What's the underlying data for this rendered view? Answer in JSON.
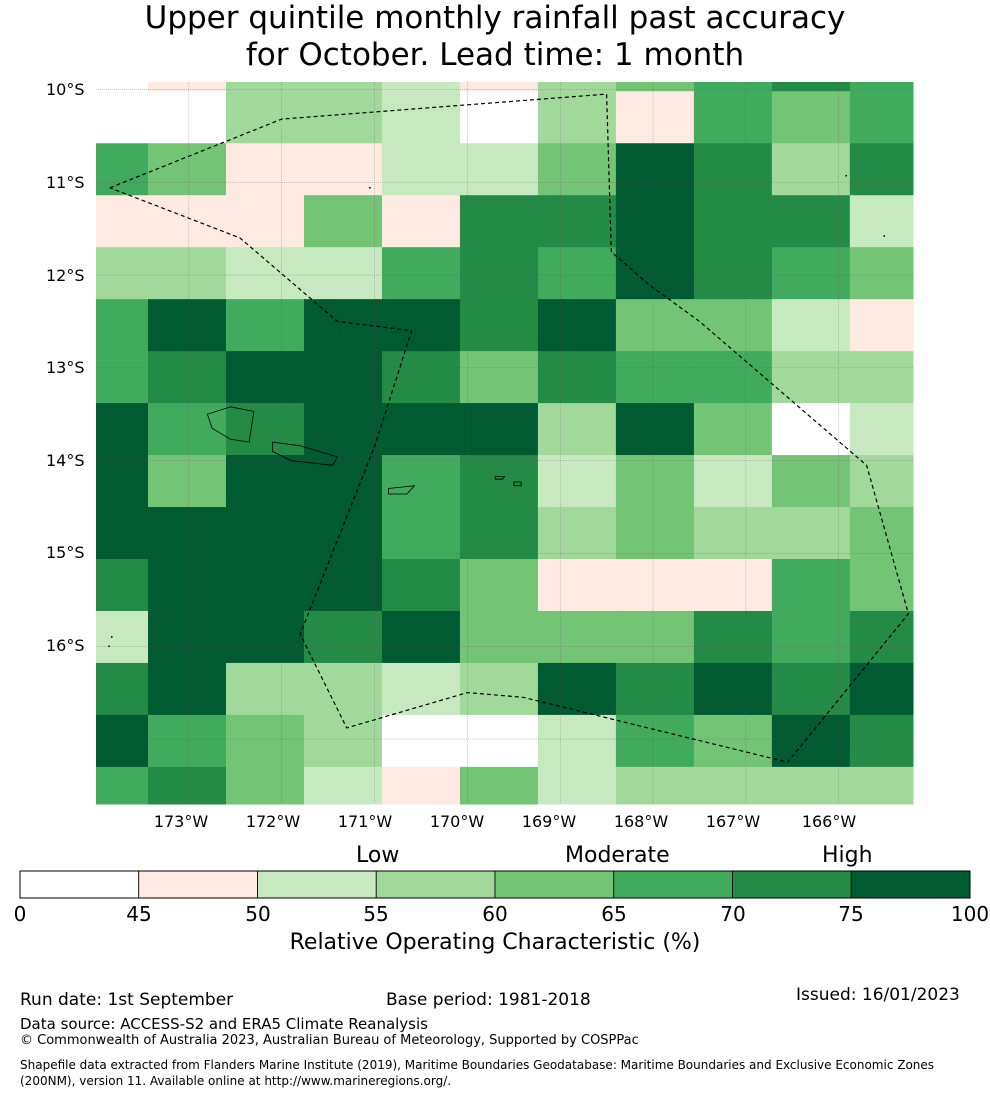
{
  "title": {
    "line1": "Upper quintile monthly rainfall past accuracy",
    "line2": "for October. Lead time: 1 month"
  },
  "map": {
    "y_labels": [
      "10°S",
      "11°S",
      "12°S",
      "13°S",
      "14°S",
      "15°S",
      "16°S"
    ],
    "x_labels": [
      "173°W",
      "172°W",
      "171°W",
      "170°W",
      "169°W",
      "168°W",
      "167°W",
      "166°W"
    ],
    "lon_range": [
      -174.0,
      -165.2
    ],
    "lat_range": [
      -17.7,
      -9.92
    ],
    "grid_lons": [
      -173.0,
      -172.0,
      -171.0,
      -170.0,
      -169.0,
      -168.0,
      -167.0,
      -166.0
    ],
    "grid_lats": [
      -10.0,
      -11.0,
      -12.0,
      -13.0,
      -14.0,
      -15.0,
      -16.0,
      -17.0
    ],
    "cell_lon_edges": [
      -174.0,
      -173.44,
      -172.6,
      -171.76,
      -170.92,
      -170.08,
      -169.24,
      -168.4,
      -167.56,
      -166.72,
      -165.88,
      -165.2
    ],
    "cell_lat_edges": [
      -9.92,
      -10.02,
      -10.58,
      -11.14,
      -11.7,
      -12.26,
      -12.82,
      -13.38,
      -13.94,
      -14.5,
      -15.06,
      -15.62,
      -16.18,
      -16.74,
      -17.3,
      -17.7
    ],
    "roc_classes": [
      [
        0,
        1,
        3,
        3,
        2,
        1,
        3,
        4,
        5,
        6,
        5
      ],
      [
        0,
        0,
        3,
        3,
        2,
        0,
        3,
        1,
        5,
        4,
        5
      ],
      [
        5,
        4,
        1,
        1,
        2,
        2,
        4,
        7,
        6,
        3,
        6
      ],
      [
        1,
        1,
        1,
        4,
        1,
        6,
        6,
        7,
        6,
        6,
        2
      ],
      [
        3,
        3,
        2,
        2,
        5,
        6,
        5,
        7,
        6,
        5,
        4
      ],
      [
        5,
        7,
        5,
        7,
        7,
        6,
        7,
        4,
        4,
        2,
        1
      ],
      [
        5,
        6,
        7,
        7,
        6,
        4,
        6,
        5,
        5,
        3,
        3
      ],
      [
        7,
        5,
        6,
        7,
        7,
        7,
        3,
        7,
        4,
        0,
        2
      ],
      [
        7,
        4,
        7,
        7,
        5,
        6,
        2,
        4,
        2,
        4,
        3
      ],
      [
        7,
        7,
        7,
        7,
        5,
        6,
        3,
        4,
        3,
        3,
        4
      ],
      [
        6,
        7,
        7,
        7,
        6,
        4,
        1,
        1,
        1,
        5,
        4
      ],
      [
        2,
        7,
        7,
        6,
        7,
        4,
        4,
        4,
        6,
        5,
        6
      ],
      [
        6,
        7,
        3,
        3,
        2,
        3,
        7,
        6,
        7,
        6,
        7
      ],
      [
        7,
        5,
        4,
        3,
        0,
        0,
        2,
        5,
        4,
        7,
        6
      ],
      [
        5,
        6,
        4,
        2,
        1,
        4,
        2,
        3,
        3,
        3,
        3
      ]
    ],
    "eez_boundary": [
      [
        -173.85,
        -11.06
      ],
      [
        -172.0,
        -10.32
      ],
      [
        -168.5,
        -10.05
      ],
      [
        -168.45,
        -11.75
      ],
      [
        -168.05,
        -12.1
      ],
      [
        -167.5,
        -12.5
      ],
      [
        -165.7,
        -14.05
      ],
      [
        -165.25,
        -15.65
      ],
      [
        -166.55,
        -17.25
      ],
      [
        -169.4,
        -16.55
      ],
      [
        -170.0,
        -16.5
      ],
      [
        -171.3,
        -16.88
      ],
      [
        -171.8,
        -15.87
      ],
      [
        -171.0,
        -13.85
      ],
      [
        -170.6,
        -12.6
      ],
      [
        -171.4,
        -12.5
      ],
      [
        -172.45,
        -11.6
      ],
      [
        -173.85,
        -11.06
      ]
    ],
    "islands": [
      [
        [
          -172.8,
          -13.5
        ],
        [
          -172.55,
          -13.42
        ],
        [
          -172.3,
          -13.47
        ],
        [
          -172.35,
          -13.8
        ],
        [
          -172.55,
          -13.77
        ],
        [
          -172.75,
          -13.65
        ],
        [
          -172.8,
          -13.5
        ]
      ],
      [
        [
          -172.1,
          -13.8
        ],
        [
          -171.8,
          -13.84
        ],
        [
          -171.4,
          -13.96
        ],
        [
          -171.45,
          -14.05
        ],
        [
          -171.9,
          -14.0
        ],
        [
          -172.1,
          -13.9
        ],
        [
          -172.1,
          -13.8
        ]
      ],
      [
        [
          -170.85,
          -14.3
        ],
        [
          -170.57,
          -14.27
        ],
        [
          -170.65,
          -14.36
        ],
        [
          -170.85,
          -14.36
        ],
        [
          -170.85,
          -14.3
        ]
      ],
      [
        [
          -169.7,
          -14.17
        ],
        [
          -169.6,
          -14.17
        ],
        [
          -169.62,
          -14.2
        ],
        [
          -169.7,
          -14.2
        ],
        [
          -169.7,
          -14.17
        ]
      ],
      [
        [
          -169.5,
          -14.23
        ],
        [
          -169.42,
          -14.23
        ],
        [
          -169.42,
          -14.27
        ],
        [
          -169.5,
          -14.27
        ],
        [
          -169.5,
          -14.23
        ]
      ]
    ]
  },
  "categories": {
    "low": "Low",
    "moderate": "Moderate",
    "high": "High"
  },
  "colorbar": {
    "ticks": [
      "0",
      "45",
      "50",
      "55",
      "60",
      "65",
      "70",
      "75",
      "100"
    ],
    "colors": [
      "#ffffff",
      "#feeae0",
      "#c7e9c0",
      "#a1d99b",
      "#74c476",
      "#41ab5d",
      "#238b45",
      "#005a32"
    ],
    "label": "Relative Operating Characteristic (%)"
  },
  "footer": {
    "run_date": "Run date: 1st September",
    "base_period": "Base period: 1981-2018",
    "issued": "Issued: 16/01/2023",
    "data_source": "Data source: ACCESS-S2 and ERA5 Climate Reanalysis",
    "copyright": "© Commonwealth of Australia 2023, Australian Bureau of Meteorology, Supported by COSPPac",
    "shapefile": "Shapefile data extracted from Flanders Marine Institute (2019), Maritime Boundaries Geodatabase: Maritime Boundaries and Exclusive Economic Zones (200NM), version 11. Available online at http://www.marineregions.org/."
  }
}
